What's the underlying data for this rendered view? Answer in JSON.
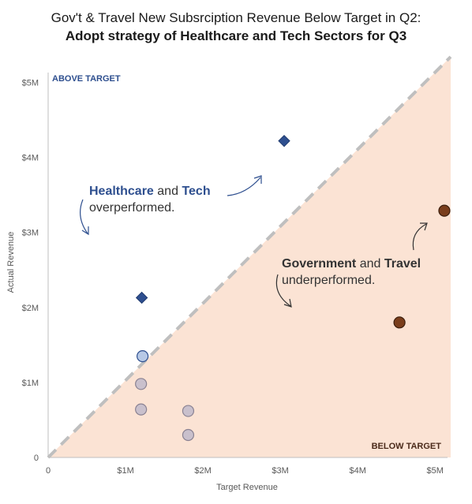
{
  "title": "Gov't & Travel New Subsrciption Revenue Below Target in Q2:",
  "subtitle": "Adopt strategy of Healthcare and Tech Sectors for Q3",
  "colors": {
    "above": "#2e4f8f",
    "below_zone": "#fbe3d4",
    "below_points": "#7a3e1c",
    "neutral_points": "#c9c0cc",
    "light_blue_points": "#b7c9e6",
    "dashed_line": "#bfbfbf",
    "text": "#333333"
  },
  "annotations": {
    "healthcare": "Healthcare",
    "and1": "and",
    "tech": "Tech",
    "overperformed": "overperformed.",
    "government": "Government",
    "and2": "and",
    "travel": "Travel",
    "underperformed": "underperformed."
  },
  "chart_data": {
    "type": "scatter",
    "title": "Gov't & Travel New Subsrciption Revenue Below Target in Q2:",
    "subtitle": "Adopt strategy of Healthcare and Tech Sectors for Q3",
    "xlabel": "Target Revenue",
    "ylabel": "Actual Revenue",
    "xlim": [
      0,
      5.1
    ],
    "ylim": [
      0,
      5.1
    ],
    "x_ticks": [
      {
        "value": 0,
        "label": "0"
      },
      {
        "value": 1,
        "label": "$1M"
      },
      {
        "value": 2,
        "label": "$2M"
      },
      {
        "value": 3,
        "label": "$3M"
      },
      {
        "value": 4,
        "label": "$4M"
      },
      {
        "value": 5,
        "label": "$5M"
      }
    ],
    "y_ticks": [
      {
        "value": 0,
        "label": "0"
      },
      {
        "value": 1,
        "label": "$1M"
      },
      {
        "value": 2,
        "label": "$2M"
      },
      {
        "value": 3,
        "label": "$3M"
      },
      {
        "value": 4,
        "label": "$4M"
      },
      {
        "value": 5,
        "label": "$5M"
      }
    ],
    "zones": {
      "above": "ABOVE TARGET",
      "below": "BELOW TARGET"
    },
    "reference_line": "y = x (dashed)",
    "points": [
      {
        "x": 3.05,
        "y": 4.22,
        "shape": "diamond",
        "group": "overperformed"
      },
      {
        "x": 1.21,
        "y": 2.13,
        "shape": "diamond",
        "group": "overperformed"
      },
      {
        "x": 5.12,
        "y": 3.29,
        "shape": "circle",
        "group": "underperformed"
      },
      {
        "x": 4.54,
        "y": 1.8,
        "shape": "circle",
        "group": "underperformed"
      },
      {
        "x": 1.22,
        "y": 1.35,
        "shape": "circle",
        "group": "near"
      },
      {
        "x": 1.2,
        "y": 0.98,
        "shape": "circle",
        "group": "other"
      },
      {
        "x": 1.2,
        "y": 0.64,
        "shape": "circle",
        "group": "other"
      },
      {
        "x": 1.81,
        "y": 0.62,
        "shape": "circle",
        "group": "other"
      },
      {
        "x": 1.81,
        "y": 0.3,
        "shape": "circle",
        "group": "other"
      }
    ],
    "grid": false,
    "legend": "none"
  }
}
